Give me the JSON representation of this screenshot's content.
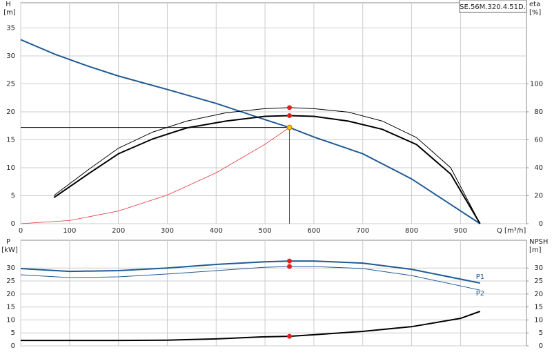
{
  "chart_data": [
    {
      "type": "line",
      "title": "SE.56M.320.4.51D.",
      "y_label": "H",
      "y_unit": "[m]",
      "y2_label": "eta",
      "y2_unit": "[%]",
      "x_label": "Q [m³/h]",
      "xlim": [
        0,
        1035
      ],
      "xticks": [
        0,
        100,
        200,
        300,
        400,
        500,
        600,
        700,
        800,
        900
      ],
      "ylim": [
        0,
        39.5
      ],
      "yticks": [
        0,
        5,
        10,
        15,
        20,
        25,
        30,
        35
      ],
      "y2lim": [
        0,
        158
      ],
      "y2ticks": [
        0,
        20,
        40,
        60,
        80,
        100
      ],
      "grid": true,
      "series": [
        {
          "color": "#1f5a96",
          "width": 2,
          "x": [
            0,
            70,
            140,
            200,
            300,
            400,
            500,
            550,
            600,
            700,
            800,
            870,
            940
          ],
          "values": [
            32.9,
            30.3,
            28.1,
            26.4,
            24.0,
            21.5,
            18.6,
            17.2,
            15.5,
            12.5,
            8.0,
            4.0,
            0
          ]
        },
        {
          "color": "#000000",
          "width": 2,
          "axis": "y2",
          "x": [
            68,
            140,
            200,
            270,
            340,
            420,
            500,
            550,
            600,
            670,
            740,
            810,
            880,
            940
          ],
          "values": [
            18.7,
            36,
            50,
            60.6,
            68.5,
            73.4,
            76.8,
            77.3,
            76.8,
            73.4,
            67.5,
            56.6,
            35.5,
            0
          ]
        },
        {
          "color": "#000000",
          "width": 1,
          "axis": "y2",
          "x": [
            68,
            140,
            200,
            270,
            340,
            420,
            500,
            550,
            600,
            670,
            740,
            810,
            880,
            940
          ],
          "values": [
            20.2,
            39,
            54,
            65.5,
            73.4,
            79.3,
            82.3,
            83,
            82.3,
            79.8,
            73.4,
            61.6,
            40,
            0
          ]
        },
        {
          "color": "#e03030",
          "width": 0.8,
          "x": [
            0,
            100,
            200,
            300,
            400,
            500,
            550
          ],
          "values": [
            0,
            0.57,
            2.27,
            5.12,
            9.1,
            14.2,
            17.2
          ]
        }
      ],
      "markers": [
        {
          "x": 550,
          "y": 77.3,
          "axis": "y2",
          "color": "#e02020"
        },
        {
          "x": 550,
          "y": 83,
          "axis": "y2",
          "color": "#e02020"
        }
      ],
      "duty_point": {
        "x": 550,
        "y": 17.2,
        "color": "#f5c400"
      }
    },
    {
      "type": "line",
      "y_label": "P",
      "y_unit": "[kW]",
      "y2_label": "NPSH",
      "y2_unit": "[m]",
      "xlim": [
        0,
        1035
      ],
      "xticks": [
        0,
        100,
        200,
        300,
        400,
        500,
        600,
        700,
        800,
        900
      ],
      "ylim": [
        0,
        40.7
      ],
      "yticks": [
        0,
        5,
        10,
        15,
        20,
        25,
        30
      ],
      "y2lim": [
        0,
        40.7
      ],
      "y2ticks": [
        0,
        5,
        10,
        15,
        20,
        25,
        30
      ],
      "grid": true,
      "series": [
        {
          "name": "P1",
          "color": "#1f5a96",
          "width": 2,
          "x": [
            0,
            100,
            200,
            300,
            400,
            500,
            550,
            600,
            700,
            800,
            940
          ],
          "values": [
            29.8,
            28.7,
            29,
            30,
            31.4,
            32.4,
            32.7,
            32.7,
            31.9,
            29.5,
            24.2
          ]
        },
        {
          "name": "P2",
          "color": "#1f5a96",
          "width": 1,
          "x": [
            0,
            100,
            200,
            300,
            400,
            500,
            550,
            600,
            700,
            800,
            940
          ],
          "values": [
            27.4,
            26.3,
            26.6,
            27.7,
            29,
            30.3,
            30.6,
            30.6,
            29.8,
            27.1,
            21.5
          ]
        },
        {
          "color": "#000000",
          "width": 2,
          "axis": "y2",
          "x": [
            0,
            100,
            200,
            300,
            400,
            500,
            550,
            600,
            700,
            800,
            900,
            940
          ],
          "values": [
            2.1,
            2.1,
            2.1,
            2.2,
            2.7,
            3.5,
            3.7,
            4.3,
            5.6,
            7.4,
            10.6,
            13.3
          ]
        }
      ],
      "markers": [
        {
          "x": 550,
          "y": 32.7,
          "color": "#e02020"
        },
        {
          "x": 550,
          "y": 30.6,
          "color": "#e02020"
        },
        {
          "x": 550,
          "y": 3.7,
          "axis": "y2",
          "color": "#e02020"
        }
      ]
    }
  ]
}
